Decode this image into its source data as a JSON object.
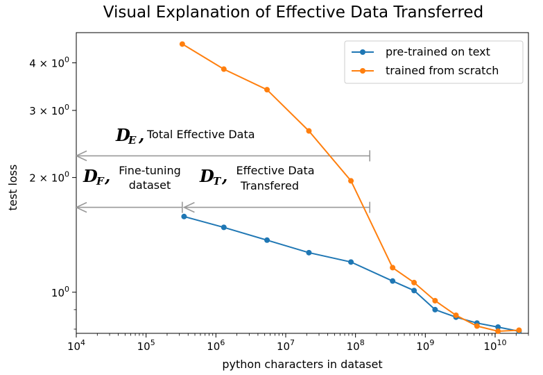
{
  "chart_data": {
    "type": "line",
    "title": "Visual Explanation of Effective Data Transferred",
    "xlabel": "python characters in dataset",
    "ylabel": "test loss",
    "xscale": "log",
    "yscale": "log",
    "xlim": [
      10000,
      30000000000
    ],
    "ylim": [
      0.78,
      4.8
    ],
    "x_ticks": [
      {
        "value": 10000,
        "base": "10",
        "exp": "4"
      },
      {
        "value": 100000,
        "base": "10",
        "exp": "5"
      },
      {
        "value": 1000000,
        "base": "10",
        "exp": "6"
      },
      {
        "value": 10000000,
        "base": "10",
        "exp": "7"
      },
      {
        "value": 100000000,
        "base": "10",
        "exp": "8"
      },
      {
        "value": 1000000000,
        "base": "10",
        "exp": "9"
      },
      {
        "value": 10000000000,
        "base": "10",
        "exp": "10"
      }
    ],
    "y_ticks": [
      {
        "value": 1,
        "label": "10",
        "exp": "0",
        "mant": ""
      },
      {
        "value": 2,
        "label": "10",
        "exp": "0",
        "mant": "2 × "
      },
      {
        "value": 3,
        "label": "10",
        "exp": "0",
        "mant": "3 × "
      },
      {
        "value": 4,
        "label": "10",
        "exp": "0",
        "mant": "4 × "
      }
    ],
    "legend": "upper-right",
    "series": [
      {
        "name": "pre-trained on text",
        "color": "#1f77b4",
        "x": [
          350000,
          1300000,
          5400000,
          21500000,
          86000000,
          340000000,
          690000000,
          1380000000,
          2750000000,
          5500000000,
          11000000000,
          22000000000
        ],
        "y": [
          1.58,
          1.48,
          1.37,
          1.27,
          1.2,
          1.07,
          1.01,
          0.9,
          0.86,
          0.83,
          0.81,
          0.79
        ]
      },
      {
        "name": "trained from scratch",
        "color": "#ff7f0e",
        "x": [
          330000,
          1300000,
          5400000,
          21500000,
          86000000,
          340000000,
          690000000,
          1380000000,
          2750000000,
          5500000000,
          11000000000,
          22000000000
        ],
        "y": [
          4.48,
          3.85,
          3.4,
          2.65,
          1.96,
          1.16,
          1.06,
          0.95,
          0.87,
          0.815,
          0.79,
          0.795
        ]
      }
    ],
    "annotations": [
      {
        "symbol": "D",
        "sub": "E",
        "text": "Total Effective Data",
        "from": 160000000,
        "to": 10000,
        "y": 2.28
      },
      {
        "symbol": "D",
        "sub": "F",
        "text_line1": "Fine-tuning",
        "text_line2": "dataset",
        "from": 330000,
        "to": 10000,
        "y": 1.67
      },
      {
        "symbol": "D",
        "sub": "T",
        "text_line1": "Effective Data",
        "text_line2": "Transfered",
        "from": 160000000,
        "to": 350000,
        "y": 1.67
      }
    ]
  }
}
